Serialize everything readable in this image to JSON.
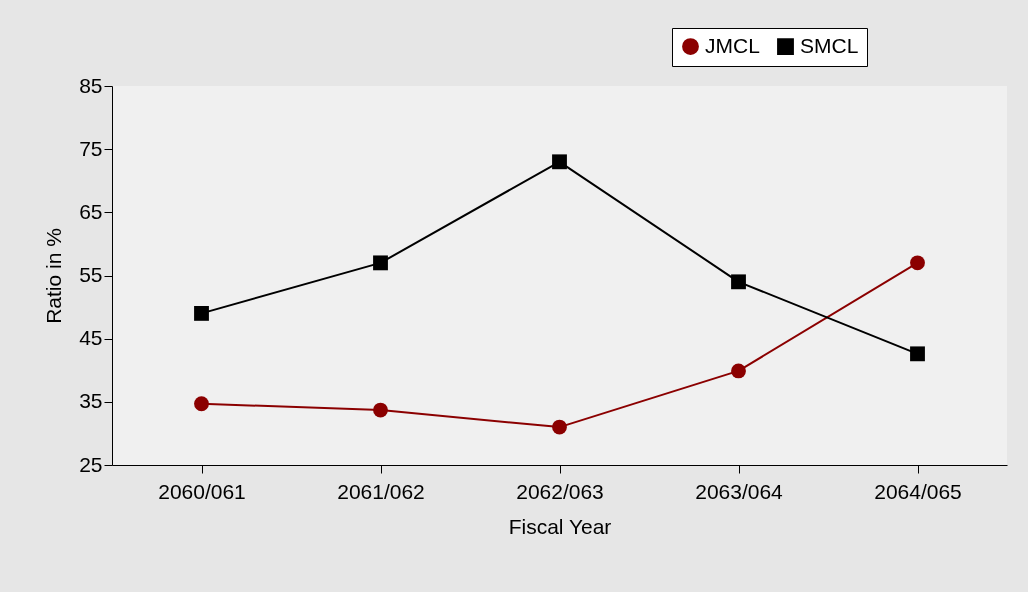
{
  "chart_data": {
    "type": "line",
    "xlabel": "Fiscal Year",
    "ylabel": "Ratio in %",
    "categories": [
      "2060/061",
      "2061/062",
      "2062/063",
      "2063/064",
      "2064/065"
    ],
    "series": [
      {
        "name": "JMCL",
        "color": "#8b0000",
        "marker": "circle",
        "values": [
          34.7,
          33.7,
          31,
          39.9,
          57
        ]
      },
      {
        "name": "SMCL",
        "color": "#000000",
        "marker": "square",
        "values": [
          49,
          57,
          73,
          54,
          42.6
        ]
      }
    ],
    "ylim": [
      25,
      85
    ],
    "yticks": [
      25,
      35,
      45,
      55,
      65,
      75,
      85
    ],
    "grid": false,
    "legend": "top right"
  }
}
